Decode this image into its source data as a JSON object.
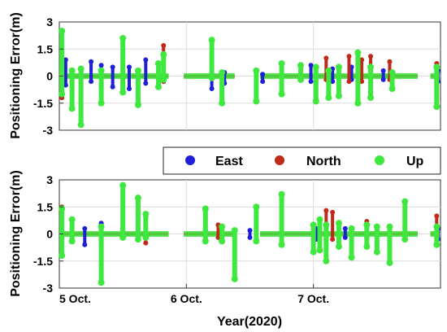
{
  "chart_data": [
    {
      "type": "scatter",
      "ylabel": "Positioning Error(m)",
      "ylim": [
        -3,
        3
      ],
      "yticks": [
        "3",
        "1.5",
        "0",
        "-1.5",
        "-3"
      ],
      "xlim": [
        0,
        3
      ],
      "xticks": [],
      "grid": true,
      "series": [
        {
          "name": "East",
          "color": "#1f1fd6",
          "spikes": [
            [
              0.05,
              0.9,
              -0.5
            ],
            [
              0.25,
              0.8,
              -0.3
            ],
            [
              0.33,
              0.6,
              -0.5
            ],
            [
              0.42,
              0.5,
              -0.6
            ],
            [
              0.55,
              0.5,
              -0.7
            ],
            [
              0.68,
              0.9,
              -0.4
            ],
            [
              0.82,
              0.6,
              -0.3
            ],
            [
              1.2,
              0.1,
              -0.7
            ],
            [
              1.3,
              0.2,
              -0.4
            ],
            [
              1.6,
              0.1,
              -0.3
            ],
            [
              1.98,
              0.6,
              -0.3
            ],
            [
              2.15,
              0.4,
              -0.3
            ],
            [
              2.3,
              0.5,
              -0.2
            ],
            [
              2.55,
              0.3,
              -0.2
            ],
            [
              2.98,
              0.3,
              -0.3
            ]
          ]
        },
        {
          "name": "North",
          "color": "#c02a1a",
          "spikes": [
            [
              0.02,
              0.5,
              -1.2
            ],
            [
              0.82,
              1.7,
              -0.3
            ],
            [
              2.02,
              0.5,
              -0.3
            ],
            [
              2.1,
              1.0,
              -0.2
            ],
            [
              2.28,
              1.1,
              -0.3
            ],
            [
              2.38,
              0.9,
              -0.3
            ],
            [
              2.45,
              1.1,
              -0.3
            ],
            [
              2.6,
              0.8,
              -0.2
            ],
            [
              2.97,
              0.7,
              -0.2
            ]
          ]
        },
        {
          "name": "Up",
          "color": "#3ee83e",
          "spikes": [
            [
              0.02,
              2.5,
              -1.0
            ],
            [
              0.1,
              0.3,
              -1.8
            ],
            [
              0.17,
              0.4,
              -2.7
            ],
            [
              0.33,
              0.3,
              -1.5
            ],
            [
              0.5,
              2.1,
              -0.9
            ],
            [
              0.62,
              0.3,
              -1.6
            ],
            [
              0.78,
              0.7,
              -0.6
            ],
            [
              0.82,
              1.2,
              -0.2
            ],
            [
              1.2,
              2.0,
              -0.1
            ],
            [
              1.28,
              0.2,
              -1.5
            ],
            [
              1.55,
              0.3,
              -1.4
            ],
            [
              1.75,
              0.7,
              -1.0
            ],
            [
              1.9,
              0.6,
              -0.2
            ],
            [
              2.02,
              0.5,
              -1.4
            ],
            [
              2.12,
              0.3,
              -1.2
            ],
            [
              2.2,
              0.5,
              -1.1
            ],
            [
              2.35,
              1.3,
              -1.5
            ],
            [
              2.45,
              0.5,
              -1.2
            ],
            [
              2.62,
              0.2,
              -0.7
            ],
            [
              2.97,
              0.5,
              -1.7
            ]
          ]
        }
      ]
    },
    {
      "type": "scatter",
      "ylabel": "Positioning Error(m)",
      "xlabel": "Year(2020)",
      "ylim": [
        -3,
        3
      ],
      "yticks": [
        "3",
        "1.5",
        "0",
        "-1.5",
        "-3"
      ],
      "xlim": [
        0,
        3
      ],
      "xticks": [
        {
          "value": 0,
          "label": "5 Oct."
        },
        {
          "value": 1,
          "label": "6 Oct."
        },
        {
          "value": 2,
          "label": "7 Oct."
        }
      ],
      "grid": true,
      "series": [
        {
          "name": "East",
          "color": "#1f1fd6",
          "spikes": [
            [
              0.2,
              0.3,
              -0.6
            ],
            [
              0.33,
              0.6,
              -0.5
            ],
            [
              0.5,
              0.3,
              -0.2
            ],
            [
              1.15,
              0.2,
              -0.3
            ],
            [
              1.38,
              0.2,
              -2.2
            ],
            [
              1.5,
              0.2,
              -0.2
            ],
            [
              2.02,
              0.3,
              -0.3
            ],
            [
              2.25,
              0.3,
              -0.2
            ],
            [
              2.3,
              0.2,
              -0.5
            ],
            [
              2.5,
              0.2,
              -0.6
            ],
            [
              2.98,
              0.3,
              -0.3
            ]
          ]
        },
        {
          "name": "North",
          "color": "#c02a1a",
          "spikes": [
            [
              0.02,
              1.5,
              -0.3
            ],
            [
              0.33,
              0.4,
              -0.3
            ],
            [
              0.68,
              1.0,
              -0.5
            ],
            [
              1.25,
              0.5,
              -0.2
            ],
            [
              2.1,
              1.3,
              -0.3
            ],
            [
              2.15,
              1.2,
              -0.3
            ],
            [
              2.42,
              0.7,
              -0.2
            ],
            [
              2.97,
              1.0,
              -0.2
            ]
          ]
        },
        {
          "name": "Up",
          "color": "#3ee83e",
          "spikes": [
            [
              0.02,
              1.4,
              -1.2
            ],
            [
              0.1,
              0.8,
              -0.4
            ],
            [
              0.33,
              0.4,
              -2.7
            ],
            [
              0.5,
              2.7,
              -0.2
            ],
            [
              0.62,
              2.0,
              -0.3
            ],
            [
              0.68,
              1.1,
              -0.2
            ],
            [
              1.15,
              1.4,
              -0.4
            ],
            [
              1.28,
              0.4,
              -0.4
            ],
            [
              1.38,
              0.2,
              -2.5
            ],
            [
              1.55,
              1.5,
              -0.4
            ],
            [
              1.75,
              2.2,
              -0.6
            ],
            [
              2.0,
              0.5,
              -1.0
            ],
            [
              2.05,
              0.8,
              -0.9
            ],
            [
              2.1,
              0.5,
              -1.5
            ],
            [
              2.2,
              0.6,
              -0.7
            ],
            [
              2.3,
              0.3,
              -1.3
            ],
            [
              2.42,
              0.5,
              -0.7
            ],
            [
              2.5,
              0.4,
              -1.0
            ],
            [
              2.6,
              0.4,
              -1.6
            ],
            [
              2.72,
              1.8,
              -0.3
            ],
            [
              2.97,
              0.4,
              -0.6
            ]
          ]
        }
      ]
    }
  ],
  "legend": {
    "entries": [
      "East",
      "North",
      "Up"
    ],
    "placement": "between-panels-right"
  }
}
